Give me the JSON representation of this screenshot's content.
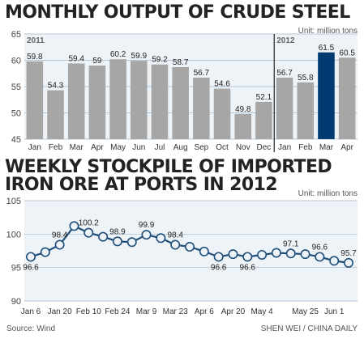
{
  "titles": {
    "steel": "MONTHLY OUTPUT OF CRUDE STEEL",
    "ore_line1": "WEEKLY STOCKPILE OF IMPORTED",
    "ore_line2": "IRON ORE AT PORTS IN 2012"
  },
  "units": {
    "steel": "Unit: million tons",
    "ore": "Unit: million tons"
  },
  "footer": {
    "source": "Source: Wind",
    "credit": "SHEN WEI / CHINA DAILY"
  },
  "colors": {
    "bar": "#a6a6a6",
    "highlight_bar": "#003c71",
    "line": "#1f4e79",
    "plot_bg": "#eef3f8",
    "grid": "#9fb8cf"
  },
  "chart_data": [
    {
      "type": "bar",
      "title": "MONTHLY OUTPUT OF CRUDE STEEL",
      "unit": "Unit: million tons",
      "year_labels": [
        "2011",
        "2012"
      ],
      "categories": [
        "Jan",
        "Feb",
        "Mar",
        "Apr",
        "May",
        "Jun",
        "Jul",
        "Aug",
        "Sep",
        "Oct",
        "Nov",
        "Dec",
        "Jan",
        "Feb",
        "Mar",
        "Apr"
      ],
      "values": [
        59.8,
        54.3,
        59.4,
        59,
        60.2,
        59.9,
        59.2,
        58.7,
        56.7,
        54.6,
        49.8,
        52.1,
        56.7,
        55.8,
        61.5,
        60.5
      ],
      "value_labels": [
        "59.8",
        "54.3",
        "59.4",
        "59",
        "60.2",
        "59.9",
        "59.2",
        "58.7",
        "56.7",
        "54.6",
        "49.8",
        "52.1",
        "56.7",
        "55.8",
        "61.5",
        "60.5"
      ],
      "highlight_index": 14,
      "ylim": [
        45,
        65
      ],
      "yticks": [
        45,
        50,
        55,
        60,
        65
      ],
      "grid": true
    },
    {
      "type": "line",
      "title": "WEEKLY STOCKPILE OF IMPORTED IRON ORE AT PORTS IN 2012",
      "unit": "Unit: million tons",
      "values": [
        96.6,
        97.3,
        98.4,
        101.2,
        100.2,
        99.6,
        98.9,
        98.8,
        99.9,
        99.4,
        98.4,
        98.1,
        97.4,
        96.6,
        97.0,
        96.6,
        96.9,
        97.2,
        97.1,
        97.0,
        96.6,
        96.0,
        95.7
      ],
      "point_labels": [
        {
          "index": 0,
          "text": "96.6"
        },
        {
          "index": 2,
          "text": "98.4"
        },
        {
          "index": 4,
          "text": "100.2"
        },
        {
          "index": 6,
          "text": "98.9"
        },
        {
          "index": 8,
          "text": "99.9"
        },
        {
          "index": 10,
          "text": "98.4"
        },
        {
          "index": 13,
          "text": "96.6"
        },
        {
          "index": 15,
          "text": "96.6"
        },
        {
          "index": 18,
          "text": "97.1"
        },
        {
          "index": 20,
          "text": "96.6"
        },
        {
          "index": 22,
          "text": "95.7"
        }
      ],
      "xtick_labels": [
        "Jan 6",
        "Jan 20",
        "Feb 10",
        "Feb 24",
        "Mar 9",
        "Mar 23",
        "Apr 6",
        "Apr 20",
        "May 4",
        "May 25",
        "Jun 1"
      ],
      "xtick_indices": [
        0,
        2,
        4,
        6,
        8,
        10,
        12,
        14,
        16,
        19,
        21
      ],
      "ylim": [
        90,
        105
      ],
      "yticks": [
        90,
        95,
        100,
        105
      ],
      "grid": true
    }
  ]
}
